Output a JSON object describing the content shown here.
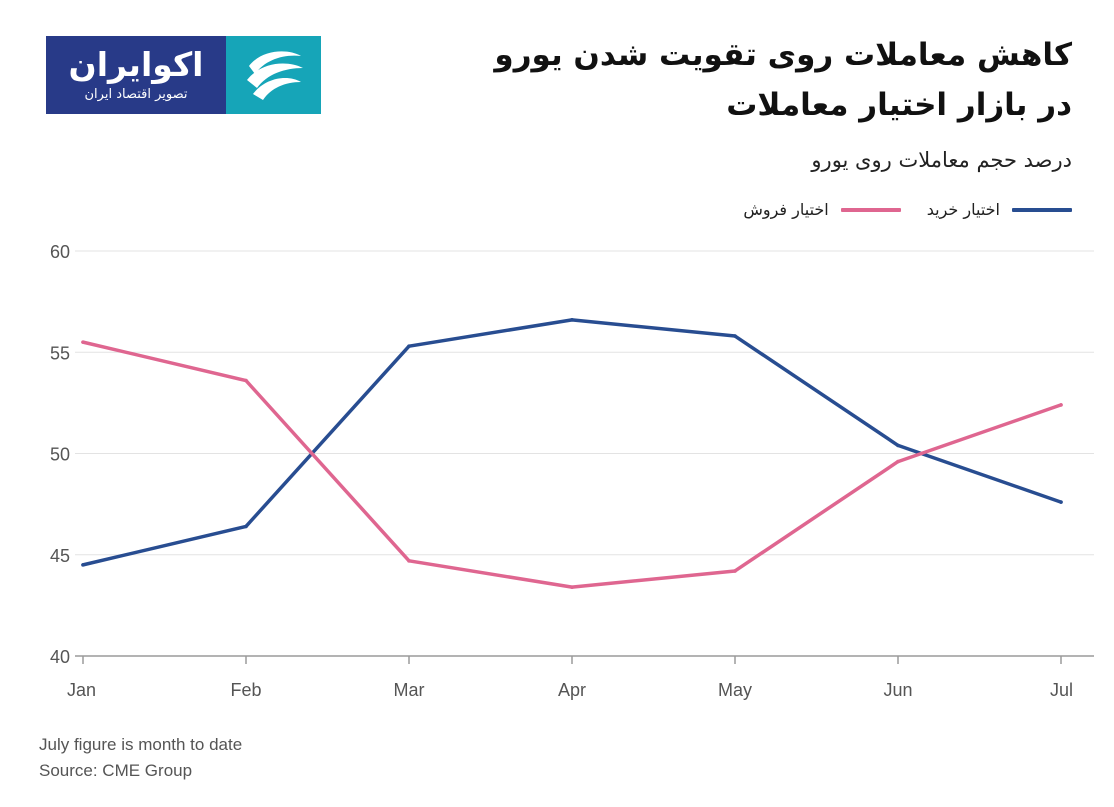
{
  "brand": {
    "name": "اکوایران",
    "tagline": "تصویر اقتصاد ایران",
    "logo_icon": "ecoiran-swirl-icon",
    "colors": {
      "navy": "#283a88",
      "teal": "#16a5b8"
    }
  },
  "header": {
    "title_line1": "کاهش معاملات روی تقویت شدن یورو",
    "title_line2": "در بازار اختیار معاملات",
    "subtitle": "درصد حجم معاملات روی یورو"
  },
  "chart_data": {
    "type": "line",
    "categories": [
      "Jan",
      "Feb",
      "Mar",
      "Apr",
      "May",
      "Jun",
      "Jul"
    ],
    "series": [
      {
        "name": "اختیار خرید",
        "color": "#284d91",
        "values": [
          44.5,
          46.4,
          55.3,
          56.6,
          55.8,
          50.4,
          47.6
        ]
      },
      {
        "name": "اختیار فروش",
        "color": "#df6690",
        "values": [
          55.5,
          53.6,
          44.7,
          43.4,
          44.2,
          49.6,
          52.4
        ]
      }
    ],
    "ylim": [
      40,
      60
    ],
    "yticks": [
      40,
      45,
      50,
      55,
      60
    ],
    "grid": true,
    "legend_position": "top-right"
  },
  "notes": {
    "line1": "July figure is month to date",
    "line2": "Source: CME Group"
  }
}
